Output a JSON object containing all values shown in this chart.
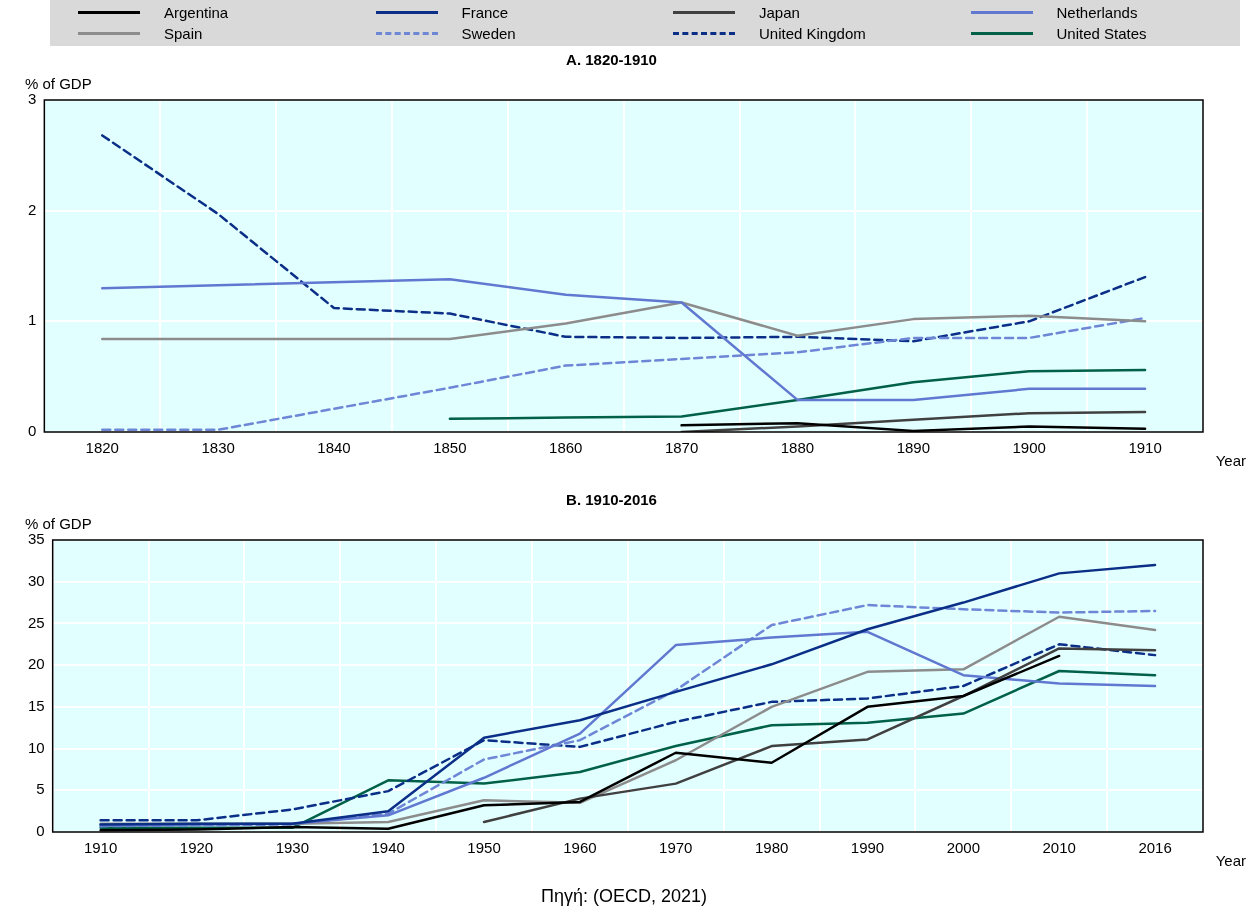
{
  "chart_data": [
    {
      "type": "line",
      "title": "A. 1820-1910",
      "ylabel": "% of GDP",
      "xlabel": "Year",
      "legend": "top",
      "grid": true,
      "marker": "none",
      "categories": [
        "1820",
        "1830",
        "1840",
        "1850",
        "1860",
        "1870",
        "1880",
        "1890",
        "1900",
        "1910"
      ],
      "ylim": [
        0,
        3
      ],
      "yticks": [
        0,
        1,
        2,
        3
      ],
      "series": [
        {
          "name": "Argentina",
          "color": "#000000",
          "values": [
            null,
            null,
            null,
            null,
            null,
            0.06,
            0.08,
            0.01,
            0.05,
            0.03
          ]
        },
        {
          "name": "France",
          "color": "#0b2f87",
          "values": [
            null,
            null,
            null,
            null,
            null,
            null,
            null,
            null,
            null,
            null
          ]
        },
        {
          "name": "Japan",
          "color": "#404040",
          "values": [
            null,
            null,
            null,
            null,
            null,
            0.0,
            0.05,
            0.11,
            0.17,
            0.18
          ]
        },
        {
          "name": "Netherlands",
          "color": "#6078d0",
          "values": [
            1.3,
            null,
            null,
            1.38,
            1.24,
            1.17,
            0.29,
            0.29,
            0.39,
            0.39
          ]
        },
        {
          "name": "Spain",
          "color": "#8c8c8c",
          "values": [
            0.84,
            0.84,
            0.84,
            0.84,
            0.98,
            1.17,
            0.87,
            1.02,
            1.05,
            1.0
          ]
        },
        {
          "name": "Sweden",
          "color": "#6e86d6",
          "line_style": "dashed",
          "values": [
            0.02,
            0.02,
            0.21,
            0.4,
            0.6,
            0.66,
            0.72,
            0.85,
            0.85,
            1.03
          ]
        },
        {
          "name": "United Kingdom",
          "color": "#0b2f87",
          "line_style": "dashed",
          "values": [
            2.68,
            1.97,
            1.12,
            1.07,
            0.86,
            0.85,
            0.86,
            0.82,
            1.0,
            1.4
          ]
        },
        {
          "name": "United States",
          "color": "#006048",
          "values": [
            null,
            null,
            null,
            0.12,
            0.13,
            0.14,
            0.29,
            0.45,
            0.55,
            0.56
          ]
        }
      ]
    },
    {
      "type": "line",
      "title": "B. 1910-2016",
      "ylabel": "% of GDP",
      "xlabel": "Year",
      "legend": false,
      "grid": true,
      "marker": "none",
      "categories": [
        "1910",
        "1920",
        "1930",
        "1940",
        "1950",
        "1960",
        "1970",
        "1980",
        "1990",
        "2000",
        "2010",
        "2016"
      ],
      "ylim": [
        0,
        35
      ],
      "yticks": [
        0,
        5,
        10,
        15,
        20,
        25,
        30,
        35
      ],
      "annotations": [
        "Πηγή: (OECD, 2021)"
      ],
      "series": [
        {
          "color": "#000000",
          "values": [
            0.2,
            0.3,
            0.6,
            0.4,
            3.2,
            3.6,
            9.5,
            8.3,
            15,
            16.3,
            21.1,
            null
          ]
        },
        {
          "color": "#0b2f87",
          "values": [
            0.9,
            1.0,
            1.0,
            2.5,
            11.3,
            13.4,
            16.8,
            20.1,
            24.3,
            27.5,
            31,
            32
          ]
        },
        {
          "color": "#404040",
          "values": [
            null,
            null,
            null,
            null,
            1.2,
            4.0,
            5.8,
            10.3,
            11.1,
            16.3,
            22.0,
            21.8
          ]
        },
        {
          "color": "#6078d0",
          "values": [
            0.8,
            0.9,
            1.0,
            2.0,
            6.5,
            11.8,
            22.4,
            23.3,
            24,
            18.8,
            17.8,
            17.5
          ]
        },
        {
          "color": "#8c8c8c",
          "values": [
            1.0,
            1.0,
            1.0,
            1.2,
            3.8,
            3.5,
            8.6,
            15,
            19.2,
            19.5,
            25.8,
            24.2
          ]
        },
        {
          "color": "#6e86d6",
          "line_style": "dashed",
          "values": [
            0.7,
            0.8,
            0.9,
            2.2,
            8.7,
            11,
            17,
            24.8,
            27.2,
            26.7,
            26.3,
            26.5
          ]
        },
        {
          "color": "#0b2f87",
          "line_style": "dashed",
          "values": [
            1.4,
            1.4,
            2.7,
            4.9,
            11,
            10.2,
            13.2,
            15.6,
            16,
            17.5,
            22.5,
            21.2
          ]
        },
        {
          "color": "#006048",
          "values": [
            0.5,
            0.5,
            0.5,
            6.2,
            5.8,
            7.2,
            10.3,
            12.8,
            13.1,
            14.2,
            19.3,
            18.8
          ]
        }
      ]
    }
  ]
}
